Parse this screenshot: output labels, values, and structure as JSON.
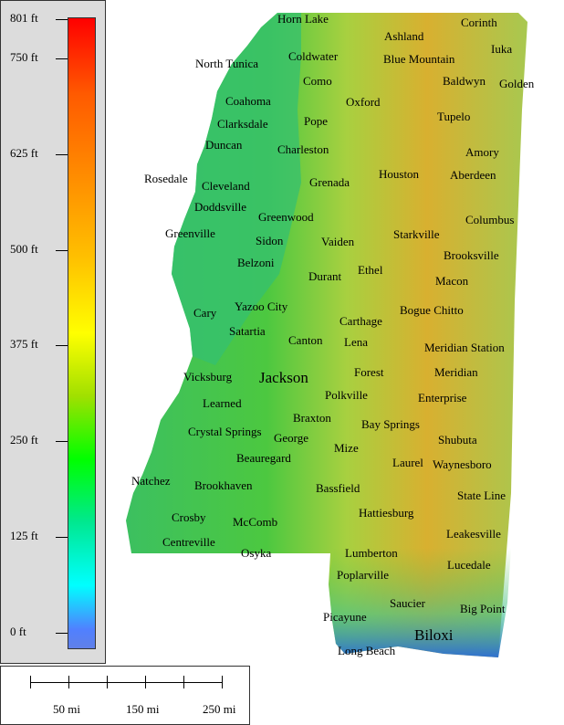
{
  "legend": {
    "ticks": [
      {
        "label": "801 ft",
        "value": 801
      },
      {
        "label": "750 ft",
        "value": 750
      },
      {
        "label": "625 ft",
        "value": 625
      },
      {
        "label": "500 ft",
        "value": 500
      },
      {
        "label": "375 ft",
        "value": 375
      },
      {
        "label": "250 ft",
        "value": 250
      },
      {
        "label": "125 ft",
        "value": 125
      },
      {
        "label": "0 ft",
        "value": 0
      }
    ]
  },
  "scale": {
    "labels": [
      "50 mi",
      "150 mi",
      "250 mi"
    ]
  },
  "map": {
    "colors": {
      "lowland": "#3cc060",
      "green": "#4cc840",
      "yellow": "#d8d030",
      "orange": "#d09030",
      "coast": "#4090d0"
    },
    "cities": [
      {
        "name": "Horn Lake"
      },
      {
        "name": "Corinth"
      },
      {
        "name": "Ashland"
      },
      {
        "name": "Iuka"
      },
      {
        "name": "North Tunica"
      },
      {
        "name": "Coldwater"
      },
      {
        "name": "Blue Mountain"
      },
      {
        "name": "Como"
      },
      {
        "name": "Baldwyn"
      },
      {
        "name": "Golden"
      },
      {
        "name": "Coahoma"
      },
      {
        "name": "Oxford"
      },
      {
        "name": "Tupelo"
      },
      {
        "name": "Clarksdale"
      },
      {
        "name": "Pope"
      },
      {
        "name": "Duncan"
      },
      {
        "name": "Charleston"
      },
      {
        "name": "Amory"
      },
      {
        "name": "Houston"
      },
      {
        "name": "Aberdeen"
      },
      {
        "name": "Rosedale"
      },
      {
        "name": "Cleveland"
      },
      {
        "name": "Grenada"
      },
      {
        "name": "Doddsville"
      },
      {
        "name": "Greenwood"
      },
      {
        "name": "Columbus"
      },
      {
        "name": "Greenville"
      },
      {
        "name": "Starkville"
      },
      {
        "name": "Sidon"
      },
      {
        "name": "Vaiden"
      },
      {
        "name": "Brooksville"
      },
      {
        "name": "Belzoni"
      },
      {
        "name": "Ethel"
      },
      {
        "name": "Durant"
      },
      {
        "name": "Macon"
      },
      {
        "name": "Yazoo City"
      },
      {
        "name": "Bogue Chitto"
      },
      {
        "name": "Cary"
      },
      {
        "name": "Carthage"
      },
      {
        "name": "Satartia"
      },
      {
        "name": "Canton"
      },
      {
        "name": "Lena"
      },
      {
        "name": "Meridian Station"
      },
      {
        "name": "Vicksburg"
      },
      {
        "name": "Jackson"
      },
      {
        "name": "Forest"
      },
      {
        "name": "Meridian"
      },
      {
        "name": "Polkville"
      },
      {
        "name": "Learned"
      },
      {
        "name": "Enterprise"
      },
      {
        "name": "Braxton"
      },
      {
        "name": "Bay Springs"
      },
      {
        "name": "Crystal Springs"
      },
      {
        "name": "George"
      },
      {
        "name": "Shubuta"
      },
      {
        "name": "Mize"
      },
      {
        "name": "Beauregard"
      },
      {
        "name": "Laurel"
      },
      {
        "name": "Waynesboro"
      },
      {
        "name": "Natchez"
      },
      {
        "name": "Brookhaven"
      },
      {
        "name": "Bassfield"
      },
      {
        "name": "State Line"
      },
      {
        "name": "Hattiesburg"
      },
      {
        "name": "Crosby"
      },
      {
        "name": "McComb"
      },
      {
        "name": "Leakesville"
      },
      {
        "name": "Centreville"
      },
      {
        "name": "Osyka"
      },
      {
        "name": "Lumberton"
      },
      {
        "name": "Lucedale"
      },
      {
        "name": "Poplarville"
      },
      {
        "name": "Saucier"
      },
      {
        "name": "Big Point"
      },
      {
        "name": "Picayune"
      },
      {
        "name": "Biloxi"
      },
      {
        "name": "Long Beach"
      }
    ]
  }
}
